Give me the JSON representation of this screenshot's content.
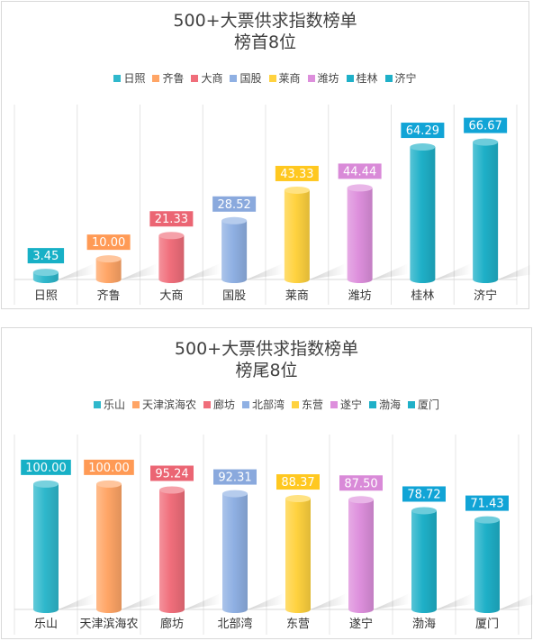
{
  "colors": [
    "#2fb8cc",
    "#ffa566",
    "#f06e7b",
    "#8fb0e3",
    "#ffd23f",
    "#dd8fdc",
    "#1fb0c8",
    "#1fb0c8"
  ],
  "label_colors": [
    "#17b0c6",
    "#ff9a55",
    "#eb6573",
    "#8aa9dd",
    "#ffc820",
    "#d98ad8",
    "#11a4d6",
    "#11a4d6"
  ],
  "chart_data": [
    {
      "type": "bar",
      "title": "500+大票供求指数榜单",
      "subtitle": "榜首8位",
      "categories": [
        "日照",
        "齐鲁",
        "大商",
        "国股",
        "莱商",
        "潍坊",
        "桂林",
        "济宁"
      ],
      "values": [
        3.45,
        10.0,
        21.33,
        28.52,
        43.33,
        44.44,
        64.29,
        66.67
      ],
      "labels": [
        "3.45",
        "10.00",
        "21.33",
        "28.52",
        "43.33",
        "44.44",
        "64.29",
        "66.67"
      ],
      "ylim": [
        0,
        70
      ],
      "grid": false,
      "legend": "top"
    },
    {
      "type": "bar",
      "title": "500+大票供求指数榜单",
      "subtitle": "榜尾8位",
      "categories": [
        "乐山",
        "天津滨海农",
        "廊坊",
        "北部湾",
        "东营",
        "遂宁",
        "渤海",
        "厦门"
      ],
      "values": [
        100.0,
        100.0,
        95.24,
        92.31,
        88.37,
        87.5,
        78.72,
        71.43
      ],
      "labels": [
        "100.00",
        "100.00",
        "95.24",
        "92.31",
        "88.37",
        "87.50",
        "78.72",
        "71.43"
      ],
      "ylim": [
        0,
        115
      ],
      "grid": false,
      "legend": "top"
    }
  ]
}
